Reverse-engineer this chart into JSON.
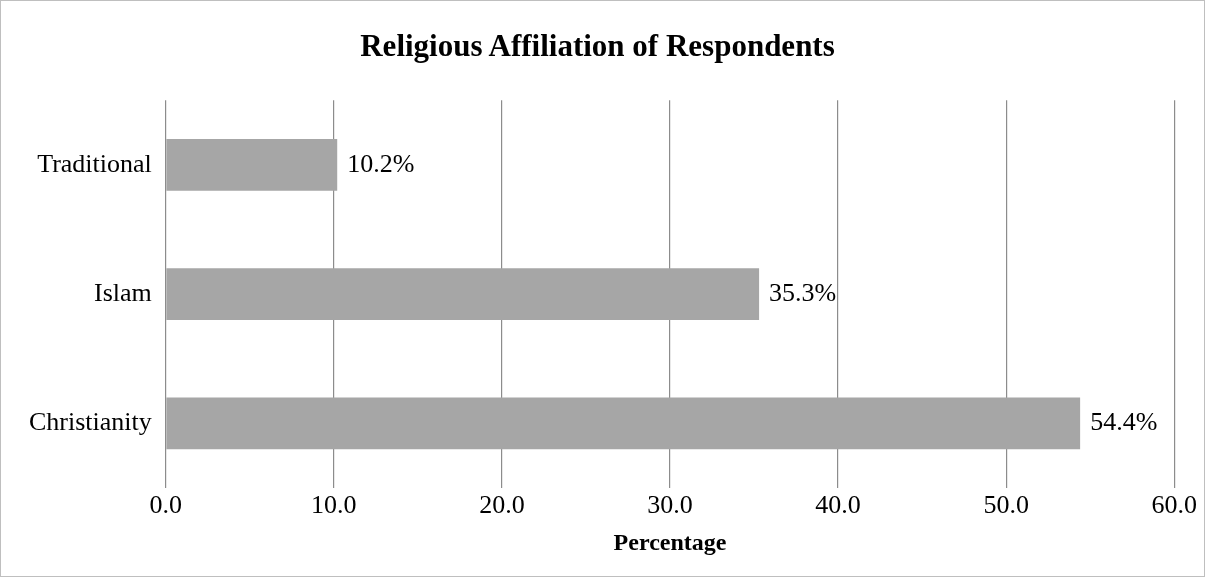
{
  "chart_data": {
    "type": "bar",
    "orientation": "horizontal",
    "title": "Religious Affiliation of Respondents",
    "xlabel": "Percentage",
    "categories": [
      "Traditional",
      "Islam",
      "Christianity"
    ],
    "values": [
      10.2,
      35.3,
      54.4
    ],
    "color": "#a6a6a6",
    "value_labels": [
      "10.2%",
      "35.3%",
      "54.4%"
    ],
    "xlim": [
      0,
      60
    ],
    "xticks": [
      {
        "value": 0,
        "label": "0.0"
      },
      {
        "value": 10,
        "label": "10.0"
      },
      {
        "value": 20,
        "label": "20.0"
      },
      {
        "value": 30,
        "label": "30.0"
      },
      {
        "value": 40,
        "label": "40.0"
      },
      {
        "value": 50,
        "label": "50.0"
      },
      {
        "value": 60,
        "label": "60.0"
      }
    ],
    "grid": "x",
    "legend": false
  }
}
